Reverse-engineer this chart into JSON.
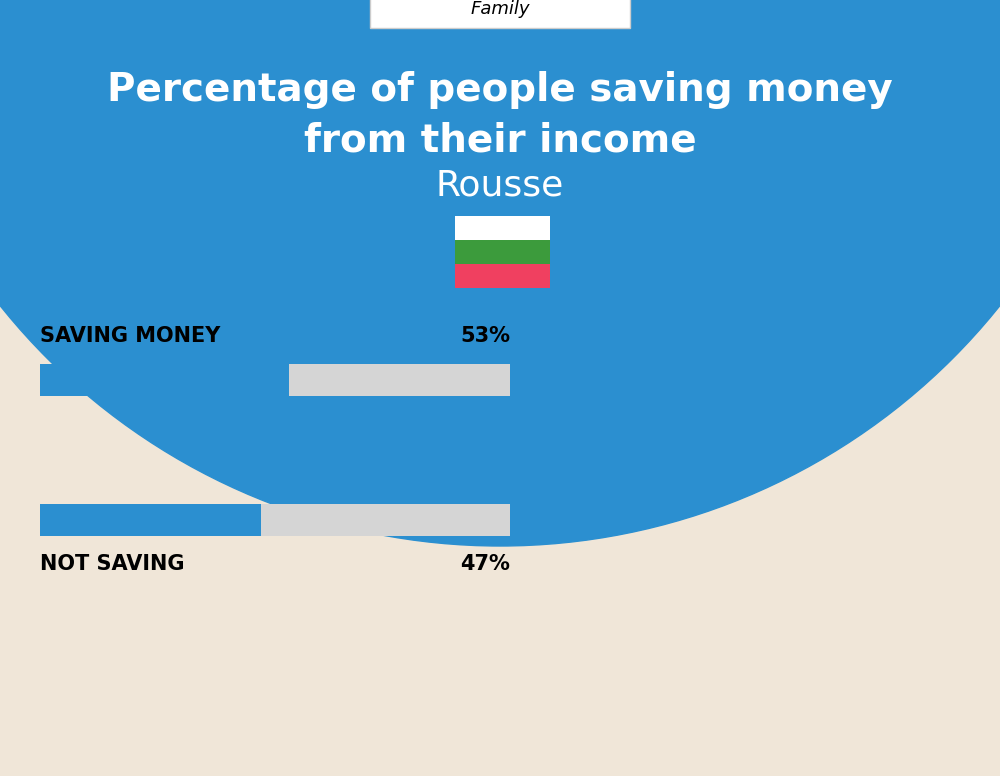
{
  "title_line1": "Percentage of people saving money",
  "title_line2": "from their income",
  "subtitle": "Rousse",
  "category_label": "Family",
  "bg_color": "#F0E6D8",
  "header_bg_color": "#2B8FD0",
  "bar_bg_color": "#D5D5D5",
  "bar_fill_color": "#2B8FD0",
  "saving_label": "SAVING MONEY",
  "saving_value": 53,
  "saving_pct_label": "53%",
  "not_saving_label": "NOT SAVING",
  "not_saving_value": 47,
  "not_saving_pct_label": "47%",
  "white_color": "#FFFFFF",
  "black_color": "#000000",
  "flag_white": "#FFFFFF",
  "flag_green": "#3C9B3C",
  "flag_red": "#F04060"
}
